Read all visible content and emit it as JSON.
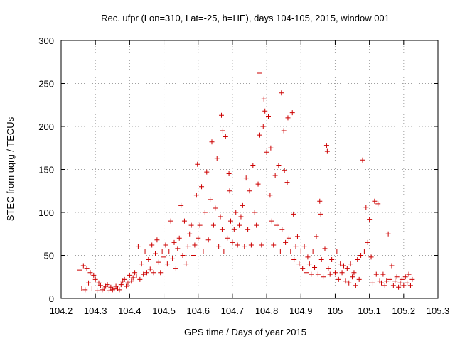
{
  "chart_data": {
    "type": "scatter",
    "title": "Rec. ufpr (Lon=310, Lat=-25, h=HE), days 104-105, 2015, window 001",
    "xlabel": "GPS time / Days of year 2015",
    "ylabel": "STEC from uqrg / TECUs",
    "xlim": [
      104.2,
      105.3
    ],
    "ylim": [
      0,
      300
    ],
    "xticks": [
      "104.2",
      "104.3",
      "104.4",
      "104.5",
      "104.6",
      "104.7",
      "104.8",
      "104.9",
      "105",
      "105.1",
      "105.2",
      "105.3"
    ],
    "yticks": [
      "0",
      "50",
      "100",
      "150",
      "200",
      "250",
      "300"
    ],
    "grid": true,
    "marker": "+",
    "color": "#cc0000",
    "series": [
      {
        "name": "STEC",
        "points": [
          [
            104.255,
            33
          ],
          [
            104.26,
            12
          ],
          [
            104.265,
            38
          ],
          [
            104.27,
            10
          ],
          [
            104.275,
            35
          ],
          [
            104.28,
            18
          ],
          [
            104.285,
            30
          ],
          [
            104.29,
            12
          ],
          [
            104.295,
            27
          ],
          [
            104.3,
            22
          ],
          [
            104.305,
            9
          ],
          [
            104.31,
            18
          ],
          [
            104.315,
            15
          ],
          [
            104.32,
            10
          ],
          [
            104.325,
            12
          ],
          [
            104.33,
            14
          ],
          [
            104.335,
            16
          ],
          [
            104.34,
            9
          ],
          [
            104.345,
            13
          ],
          [
            104.35,
            10
          ],
          [
            104.355,
            11
          ],
          [
            104.36,
            14
          ],
          [
            104.365,
            12
          ],
          [
            104.37,
            10
          ],
          [
            104.375,
            16
          ],
          [
            104.38,
            20
          ],
          [
            104.385,
            22
          ],
          [
            104.39,
            14
          ],
          [
            104.395,
            18
          ],
          [
            104.4,
            27
          ],
          [
            104.405,
            20
          ],
          [
            104.41,
            24
          ],
          [
            104.415,
            30
          ],
          [
            104.42,
            26
          ],
          [
            104.425,
            60
          ],
          [
            104.43,
            22
          ],
          [
            104.435,
            40
          ],
          [
            104.44,
            28
          ],
          [
            104.445,
            55
          ],
          [
            104.45,
            30
          ],
          [
            104.455,
            45
          ],
          [
            104.46,
            34
          ],
          [
            104.465,
            62
          ],
          [
            104.47,
            30
          ],
          [
            104.475,
            52
          ],
          [
            104.48,
            68
          ],
          [
            104.485,
            42
          ],
          [
            104.49,
            30
          ],
          [
            104.495,
            55
          ],
          [
            104.5,
            48
          ],
          [
            104.505,
            62
          ],
          [
            104.51,
            40
          ],
          [
            104.515,
            55
          ],
          [
            104.52,
            90
          ],
          [
            104.525,
            46
          ],
          [
            104.53,
            65
          ],
          [
            104.535,
            35
          ],
          [
            104.54,
            58
          ],
          [
            104.545,
            70
          ],
          [
            104.55,
            108
          ],
          [
            104.555,
            50
          ],
          [
            104.56,
            90
          ],
          [
            104.565,
            40
          ],
          [
            104.57,
            60
          ],
          [
            104.575,
            75
          ],
          [
            104.58,
            85
          ],
          [
            104.585,
            50
          ],
          [
            104.59,
            62
          ],
          [
            104.595,
            120
          ],
          [
            104.598,
            156
          ],
          [
            104.6,
            70
          ],
          [
            104.605,
            85
          ],
          [
            104.61,
            130
          ],
          [
            104.615,
            55
          ],
          [
            104.62,
            100
          ],
          [
            104.625,
            147
          ],
          [
            104.63,
            68
          ],
          [
            104.635,
            115
          ],
          [
            104.64,
            182
          ],
          [
            104.645,
            85
          ],
          [
            104.65,
            105
          ],
          [
            104.655,
            163
          ],
          [
            104.66,
            60
          ],
          [
            104.665,
            95
          ],
          [
            104.668,
            213
          ],
          [
            104.67,
            80
          ],
          [
            104.672,
            195
          ],
          [
            104.675,
            55
          ],
          [
            104.68,
            188
          ],
          [
            104.685,
            70
          ],
          [
            104.69,
            145
          ],
          [
            104.692,
            125
          ],
          [
            104.695,
            90
          ],
          [
            104.7,
            65
          ],
          [
            104.705,
            80
          ],
          [
            104.71,
            100
          ],
          [
            104.715,
            62
          ],
          [
            104.72,
            85
          ],
          [
            104.725,
            95
          ],
          [
            104.73,
            108
          ],
          [
            104.735,
            60
          ],
          [
            104.74,
            140
          ],
          [
            104.745,
            80
          ],
          [
            104.75,
            125
          ],
          [
            104.755,
            62
          ],
          [
            104.76,
            155
          ],
          [
            104.765,
            100
          ],
          [
            104.77,
            85
          ],
          [
            104.775,
            133
          ],
          [
            104.778,
            262
          ],
          [
            104.78,
            190
          ],
          [
            104.785,
            62
          ],
          [
            104.79,
            200
          ],
          [
            104.792,
            232
          ],
          [
            104.795,
            218
          ],
          [
            104.8,
            170
          ],
          [
            104.805,
            212
          ],
          [
            104.81,
            120
          ],
          [
            104.812,
            175
          ],
          [
            104.815,
            90
          ],
          [
            104.82,
            62
          ],
          [
            104.825,
            143
          ],
          [
            104.83,
            85
          ],
          [
            104.835,
            155
          ],
          [
            104.84,
            55
          ],
          [
            104.843,
            239
          ],
          [
            104.845,
            80
          ],
          [
            104.85,
            195
          ],
          [
            104.852,
            149
          ],
          [
            104.855,
            65
          ],
          [
            104.86,
            135
          ],
          [
            104.862,
            210
          ],
          [
            104.865,
            70
          ],
          [
            104.87,
            55
          ],
          [
            104.875,
            216
          ],
          [
            104.878,
            98
          ],
          [
            104.88,
            45
          ],
          [
            104.885,
            60
          ],
          [
            104.89,
            72
          ],
          [
            104.895,
            40
          ],
          [
            104.9,
            55
          ],
          [
            104.905,
            35
          ],
          [
            104.91,
            60
          ],
          [
            104.915,
            30
          ],
          [
            104.92,
            48
          ],
          [
            104.925,
            40
          ],
          [
            104.93,
            28
          ],
          [
            104.935,
            55
          ],
          [
            104.94,
            36
          ],
          [
            104.945,
            72
          ],
          [
            104.95,
            28
          ],
          [
            104.955,
            113
          ],
          [
            104.958,
            98
          ],
          [
            104.96,
            45
          ],
          [
            104.965,
            25
          ],
          [
            104.97,
            58
          ],
          [
            104.975,
            178
          ],
          [
            104.977,
            171
          ],
          [
            104.98,
            35
          ],
          [
            104.985,
            28
          ],
          [
            104.99,
            45
          ],
          [
            105.0,
            30
          ],
          [
            105.005,
            55
          ],
          [
            105.01,
            22
          ],
          [
            105.015,
            40
          ],
          [
            105.02,
            30
          ],
          [
            105.025,
            38
          ],
          [
            105.03,
            20
          ],
          [
            105.035,
            35
          ],
          [
            105.04,
            18
          ],
          [
            105.045,
            40
          ],
          [
            105.05,
            25
          ],
          [
            105.055,
            30
          ],
          [
            105.06,
            15
          ],
          [
            105.065,
            45
          ],
          [
            105.07,
            22
          ],
          [
            105.075,
            50
          ],
          [
            105.08,
            161
          ],
          [
            105.085,
            55
          ],
          [
            105.09,
            106
          ],
          [
            105.095,
            65
          ],
          [
            105.1,
            92
          ],
          [
            105.105,
            48
          ],
          [
            105.11,
            18
          ],
          [
            105.115,
            113
          ],
          [
            105.12,
            28
          ],
          [
            105.125,
            110
          ],
          [
            105.13,
            20
          ],
          [
            105.135,
            18
          ],
          [
            105.14,
            28
          ],
          [
            105.145,
            15
          ],
          [
            105.15,
            20
          ],
          [
            105.155,
            75
          ],
          [
            105.16,
            22
          ],
          [
            105.165,
            38
          ],
          [
            105.17,
            15
          ],
          [
            105.175,
            20
          ],
          [
            105.18,
            25
          ],
          [
            105.185,
            13
          ],
          [
            105.19,
            18
          ],
          [
            105.195,
            22
          ],
          [
            105.2,
            15
          ],
          [
            105.205,
            25
          ],
          [
            105.21,
            18
          ],
          [
            105.215,
            28
          ],
          [
            105.22,
            15
          ],
          [
            105.225,
            22
          ]
        ]
      }
    ]
  }
}
